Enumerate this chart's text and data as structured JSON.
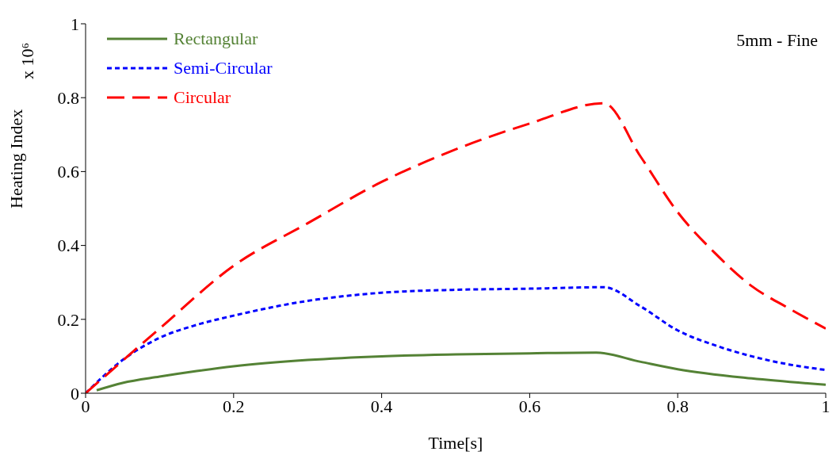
{
  "chart_data": {
    "type": "line",
    "xlabel": "Time[s]",
    "ylabel": "Heating Index",
    "annotations": [
      "5mm - Fine",
      "x 10⁶"
    ],
    "xlim": [
      0,
      1
    ],
    "ylim": [
      0,
      1
    ],
    "xticks": [
      0,
      0.2,
      0.4,
      0.6,
      0.8,
      1
    ],
    "yticks": [
      0,
      0.2,
      0.4,
      0.6,
      0.8,
      1
    ],
    "grid": false,
    "legend": "top left",
    "marker": "none",
    "series": [
      {
        "name": "Rectangular",
        "color": "#548235",
        "line_style": "solid",
        "x": [
          0.015,
          0.05,
          0.1,
          0.15,
          0.2,
          0.3,
          0.4,
          0.5,
          0.6,
          0.69,
          0.75,
          0.8,
          0.9,
          1
        ],
        "values": [
          0.008,
          0.028,
          0.045,
          0.06,
          0.073,
          0.09,
          0.1,
          0.105,
          0.108,
          0.11,
          0.085,
          0.065,
          0.04,
          0.023
        ]
      },
      {
        "name": "Semi-Circular",
        "color": "#0000ff",
        "line_style": "dotted",
        "x": [
          0,
          0.05,
          0.1,
          0.15,
          0.2,
          0.3,
          0.4,
          0.5,
          0.6,
          0.7,
          0.75,
          0.8,
          0.85,
          0.9,
          0.95,
          1
        ],
        "values": [
          0,
          0.09,
          0.15,
          0.185,
          0.21,
          0.25,
          0.272,
          0.28,
          0.283,
          0.287,
          0.235,
          0.17,
          0.13,
          0.1,
          0.078,
          0.063
        ]
      },
      {
        "name": "Circular",
        "color": "#ff0000",
        "line_style": "dashed",
        "x": [
          0,
          0.1,
          0.2,
          0.3,
          0.4,
          0.5,
          0.6,
          0.7,
          0.75,
          0.8,
          0.85,
          0.9,
          0.95,
          1
        ],
        "values": [
          0,
          0.175,
          0.345,
          0.46,
          0.572,
          0.66,
          0.73,
          0.785,
          0.64,
          0.49,
          0.38,
          0.29,
          0.23,
          0.175
        ]
      }
    ]
  }
}
